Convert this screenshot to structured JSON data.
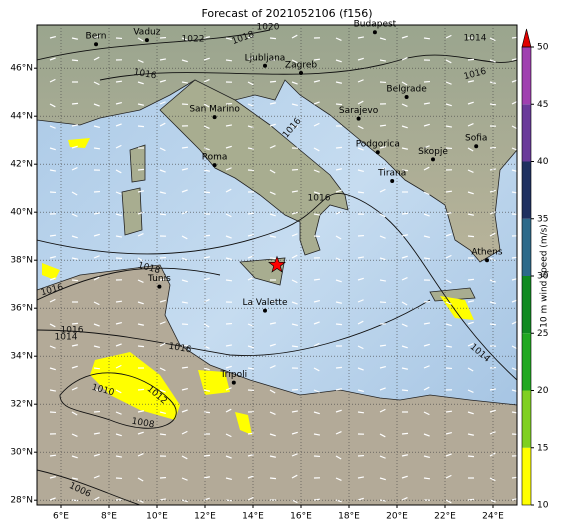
{
  "title": "Forecast of 2021052106 (f156)",
  "map": {
    "lonlim": [
      5,
      25
    ],
    "latlim": [
      27.8,
      47.8
    ],
    "lon_ticks": [
      {
        "value": 6,
        "label": "6°E"
      },
      {
        "value": 8,
        "label": "8°E"
      },
      {
        "value": 10,
        "label": "10°E"
      },
      {
        "value": 12,
        "label": "12°E"
      },
      {
        "value": 14,
        "label": "14°E"
      },
      {
        "value": 16,
        "label": "16°E"
      },
      {
        "value": 18,
        "label": "18°E"
      },
      {
        "value": 20,
        "label": "20°E"
      },
      {
        "value": 22,
        "label": "22°E"
      },
      {
        "value": 24,
        "label": "24°E"
      }
    ],
    "lat_ticks": [
      {
        "value": 28,
        "label": "28°N"
      },
      {
        "value": 30,
        "label": "30°N"
      },
      {
        "value": 32,
        "label": "32°N"
      },
      {
        "value": 34,
        "label": "34°N"
      },
      {
        "value": 36,
        "label": "36°N"
      },
      {
        "value": 38,
        "label": "38°N"
      },
      {
        "value": 40,
        "label": "40°N"
      },
      {
        "value": 42,
        "label": "42°N"
      },
      {
        "value": 44,
        "label": "44°N"
      },
      {
        "value": 46,
        "label": "46°N"
      }
    ],
    "cities": [
      {
        "name": "Bern",
        "lon": 7.46,
        "lat": 47.0
      },
      {
        "name": "Vaduz",
        "lon": 9.58,
        "lat": 47.17
      },
      {
        "name": "Budapest",
        "lon": 19.08,
        "lat": 47.5
      },
      {
        "name": "Ljubljana",
        "lon": 14.5,
        "lat": 46.1
      },
      {
        "name": "Zagreb",
        "lon": 16.0,
        "lat": 45.8
      },
      {
        "name": "Belgrade",
        "lon": 20.4,
        "lat": 44.8
      },
      {
        "name": "San Marino",
        "lon": 12.4,
        "lat": 43.96
      },
      {
        "name": "Sarajevo",
        "lon": 18.4,
        "lat": 43.9
      },
      {
        "name": "Podgorica",
        "lon": 19.2,
        "lat": 42.5
      },
      {
        "name": "Skopje",
        "lon": 21.5,
        "lat": 42.2
      },
      {
        "name": "Sofia",
        "lon": 23.3,
        "lat": 42.75
      },
      {
        "name": "Tirana",
        "lon": 19.8,
        "lat": 41.3
      },
      {
        "name": "Roma",
        "lon": 12.4,
        "lat": 41.96
      },
      {
        "name": "Athens",
        "lon": 23.75,
        "lat": 38.0
      },
      {
        "name": "Tunis",
        "lon": 10.1,
        "lat": 36.9
      },
      {
        "name": "La Valette",
        "lon": 14.5,
        "lat": 35.9
      },
      {
        "name": "Tripoli",
        "lon": 13.2,
        "lat": 32.9
      }
    ],
    "marker": {
      "lon": 15.0,
      "lat": 37.8,
      "color": "#ff0000"
    },
    "isobar_labels": [
      "1022",
      "1018",
      "1020",
      "1016",
      "1014",
      "1016",
      "1016",
      "1016",
      "1018",
      "1016",
      "1016",
      "1014",
      "1016",
      "1010",
      "1012",
      "1008",
      "1006",
      "1014"
    ]
  },
  "colorbar": {
    "label": "10 m wind speed (m/s)",
    "lim": [
      10,
      50
    ],
    "ticks": [
      10,
      15,
      20,
      25,
      30,
      35,
      40,
      45,
      50
    ],
    "colors": [
      "#ffff00",
      "#80d020",
      "#20a820",
      "#108a20",
      "#2d6a8a",
      "#1f3060",
      "#6a3a9a",
      "#a040b0"
    ],
    "extend_color": "#e00000"
  }
}
